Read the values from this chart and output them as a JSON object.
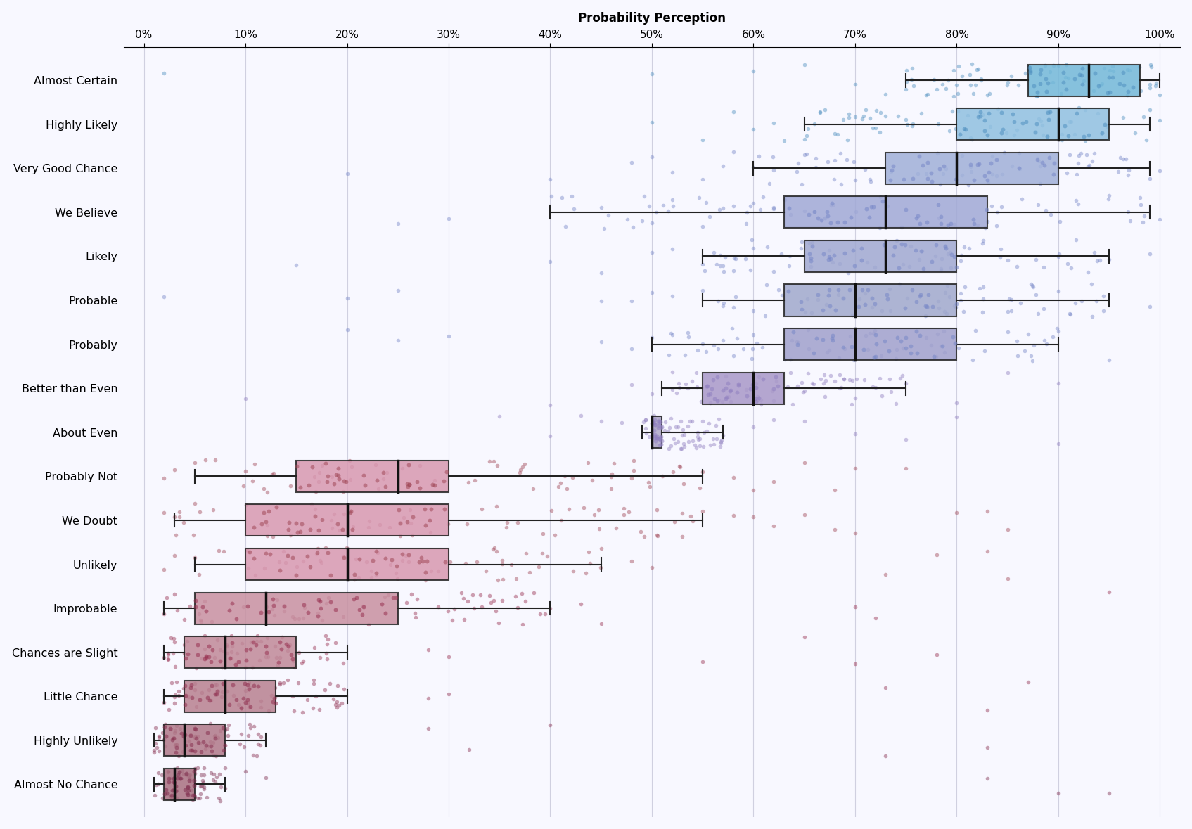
{
  "title": "Probability Perception",
  "categories": [
    "Almost Certain",
    "Highly Likely",
    "Very Good Chance",
    "We Believe",
    "Likely",
    "Probable",
    "Probably",
    "Better than Even",
    "About Even",
    "Probably Not",
    "We Doubt",
    "Unlikely",
    "Improbable",
    "Chances are Slight",
    "Little Chance",
    "Highly Unlikely",
    "Almost No Chance"
  ],
  "box_stats": {
    "Almost Certain": {
      "whislo": 75,
      "q1": 87,
      "med": 93,
      "q3": 98,
      "whishi": 100
    },
    "Highly Likely": {
      "whislo": 65,
      "q1": 80,
      "med": 90,
      "q3": 95,
      "whishi": 99
    },
    "Very Good Chance": {
      "whislo": 60,
      "q1": 73,
      "med": 80,
      "q3": 90,
      "whishi": 99
    },
    "We Believe": {
      "whislo": 40,
      "q1": 63,
      "med": 73,
      "q3": 83,
      "whishi": 99
    },
    "Likely": {
      "whislo": 55,
      "q1": 65,
      "med": 73,
      "q3": 80,
      "whishi": 95
    },
    "Probable": {
      "whislo": 55,
      "q1": 63,
      "med": 70,
      "q3": 80,
      "whishi": 95
    },
    "Probably": {
      "whislo": 50,
      "q1": 63,
      "med": 70,
      "q3": 80,
      "whishi": 90
    },
    "Better than Even": {
      "whislo": 51,
      "q1": 55,
      "med": 60,
      "q3": 63,
      "whishi": 75
    },
    "About Even": {
      "whislo": 49,
      "q1": 50,
      "med": 50,
      "q3": 51,
      "whishi": 57
    },
    "Probably Not": {
      "whislo": 5,
      "q1": 15,
      "med": 25,
      "q3": 30,
      "whishi": 55
    },
    "We Doubt": {
      "whislo": 3,
      "q1": 10,
      "med": 20,
      "q3": 30,
      "whishi": 55
    },
    "Unlikely": {
      "whislo": 5,
      "q1": 10,
      "med": 20,
      "q3": 30,
      "whishi": 45
    },
    "Improbable": {
      "whislo": 2,
      "q1": 5,
      "med": 12,
      "q3": 25,
      "whishi": 40
    },
    "Chances are Slight": {
      "whislo": 2,
      "q1": 4,
      "med": 8,
      "q3": 15,
      "whishi": 20
    },
    "Little Chance": {
      "whislo": 2,
      "q1": 4,
      "med": 8,
      "q3": 13,
      "whishi": 20
    },
    "Highly Unlikely": {
      "whislo": 1,
      "q1": 2,
      "med": 4,
      "q3": 8,
      "whishi": 12
    },
    "Almost No Chance": {
      "whislo": 1,
      "q1": 2,
      "med": 3,
      "q3": 5,
      "whishi": 8
    }
  },
  "box_colors": {
    "Almost Certain": "#72b8d8",
    "Highly Likely": "#90c0e0",
    "Very Good Chance": "#a0b0d8",
    "We Believe": "#a0a8d5",
    "Likely": "#a0a8d0",
    "Probable": "#a0a8cc",
    "Probably": "#a0a0cc",
    "Better than Even": "#a898c8",
    "About Even": "#b0a8c8",
    "Probably Not": "#d898b0",
    "We Doubt": "#d898b0",
    "Unlikely": "#d898b0",
    "Improbable": "#c890a0",
    "Chances are Slight": "#c08898",
    "Little Chance": "#b88090",
    "Highly Unlikely": "#b07888",
    "Almost No Chance": "#a87080"
  },
  "dot_colors": {
    "Almost Certain": "#5090c0",
    "Highly Likely": "#5090c0",
    "Very Good Chance": "#7888c8",
    "We Believe": "#7888c8",
    "Likely": "#7888c8",
    "Probable": "#7888c8",
    "Probably": "#7888c8",
    "Better than Even": "#9080c0",
    "About Even": "#9080c0",
    "Probably Not": "#a04858",
    "We Doubt": "#a04858",
    "Unlikely": "#a04858",
    "Improbable": "#983050",
    "Chances are Slight": "#983050",
    "Little Chance": "#903050",
    "Highly Unlikely": "#883050",
    "Almost No Chance": "#803050"
  },
  "outlier_points": {
    "Almost Certain": [
      2,
      50,
      60,
      65,
      70,
      73,
      75,
      78,
      80,
      82,
      83,
      85,
      87,
      99,
      100
    ],
    "Highly Likely": [
      50,
      55,
      58,
      60,
      62,
      63,
      65,
      67,
      68,
      70,
      72,
      73,
      75,
      99,
      100
    ],
    "Very Good Chance": [
      20,
      40,
      48,
      50,
      52,
      55,
      57,
      58,
      60,
      62,
      65,
      68,
      70,
      99,
      100
    ],
    "We Believe": [
      25,
      30,
      45,
      50,
      52,
      55,
      57,
      58,
      60,
      62,
      65,
      95,
      98,
      100
    ],
    "Likely": [
      15,
      40,
      45,
      50,
      52,
      55,
      57,
      58,
      60,
      62,
      85,
      90,
      95,
      99
    ],
    "Probable": [
      2,
      20,
      25,
      45,
      48,
      50,
      52,
      55,
      57,
      58,
      60,
      85,
      90,
      99
    ],
    "Probably": [
      20,
      25,
      30,
      45,
      48,
      50,
      52,
      55,
      57,
      58,
      60,
      85,
      90,
      95
    ],
    "Better than Even": [
      10,
      40,
      48,
      50,
      52,
      65,
      68,
      70,
      72,
      75,
      80,
      85,
      90
    ],
    "About Even": [
      35,
      40,
      43,
      45,
      47,
      55,
      57,
      60,
      62,
      65,
      70,
      75,
      80,
      90
    ],
    "Probably Not": [
      2,
      3,
      5,
      7,
      10,
      55,
      58,
      60,
      62,
      65,
      68,
      70,
      75
    ],
    "We Doubt": [
      2,
      3,
      5,
      55,
      58,
      60,
      62,
      65,
      68,
      70,
      80,
      83,
      85
    ],
    "Unlikely": [
      2,
      3,
      5,
      45,
      48,
      50,
      73,
      78,
      83,
      85
    ],
    "Improbable": [
      2,
      3,
      40,
      43,
      45,
      70,
      72,
      95
    ],
    "Chances are Slight": [
      2,
      3,
      28,
      30,
      55,
      65,
      70,
      78
    ],
    "Little Chance": [
      2,
      3,
      5,
      28,
      30,
      73,
      83,
      87
    ],
    "Highly Unlikely": [
      2,
      3,
      5,
      28,
      32,
      40,
      73,
      83
    ],
    "Almost No Chance": [
      5,
      8,
      10,
      12,
      83,
      90,
      95
    ]
  },
  "bg_color": "#f8f8ff",
  "grid_color": "#ccccdd"
}
